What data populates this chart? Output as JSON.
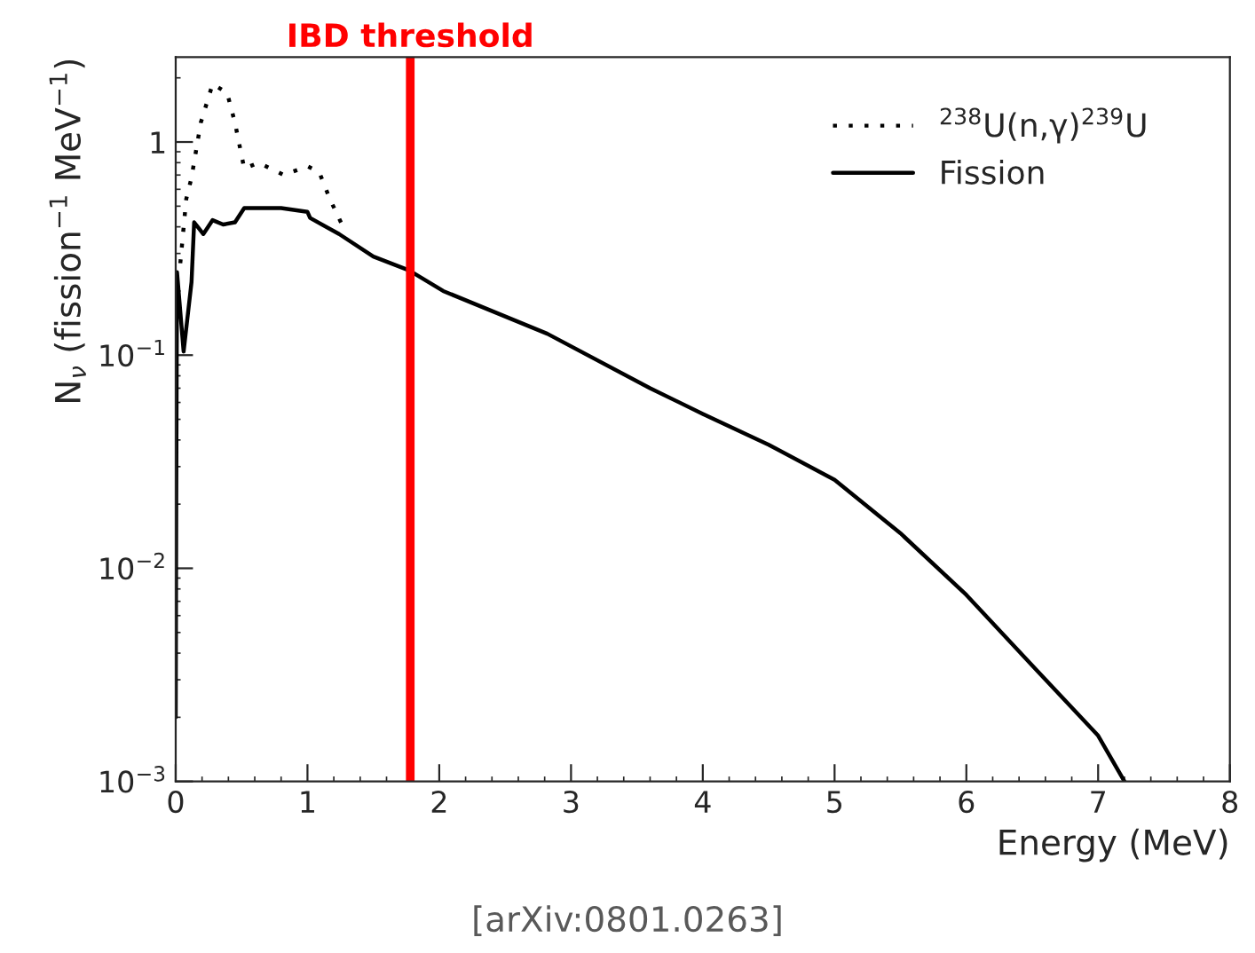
{
  "chart_data": {
    "type": "line",
    "xlabel": "Energy (MeV)",
    "ylabel": "N$_{ν}$ (fission$^{−1}$ MeV$^{−1}$)",
    "log": "y",
    "xlim": [
      0,
      8
    ],
    "ylim": [
      0.001,
      2.5
    ],
    "xticks": [
      0,
      1,
      2,
      3,
      4,
      5,
      6,
      7,
      8
    ],
    "yticks": [
      {
        "value": 0.001,
        "label": "10$^{−3}$"
      },
      {
        "value": 0.01,
        "label": "10$^{−2}$"
      },
      {
        "value": 0.1,
        "label": "10$^{−1}$"
      },
      {
        "value": 1,
        "label": "1"
      }
    ],
    "grid": false,
    "legend": "top right",
    "series": [
      {
        "name": "$^{238}$U(n,γ)$^{239}$U",
        "color": "#000000",
        "line_style": "dotted",
        "x": [
          0.035,
          0.08,
          0.12,
          0.19,
          0.28,
          0.39,
          0.45,
          0.52,
          0.63,
          0.82,
          1.0,
          1.09,
          1.17,
          1.27
        ],
        "values": [
          0.27,
          0.54,
          0.68,
          1.23,
          1.87,
          1.7,
          1.23,
          0.75,
          0.8,
          0.7,
          0.77,
          0.72,
          0.54,
          0.4
        ]
      },
      {
        "name": "Fission",
        "color": "#000000",
        "line_style": "solid",
        "x": [
          0.0,
          0.004,
          0.01,
          0.06,
          0.12,
          0.14,
          0.21,
          0.28,
          0.36,
          0.45,
          0.52,
          0.8,
          1.0,
          1.02,
          1.24,
          1.5,
          1.77,
          2.03,
          2.82,
          3.6,
          4.0,
          4.5,
          5.0,
          5.5,
          6.0,
          6.5,
          7.0,
          7.2
        ],
        "values": [
          0.002,
          0.02,
          0.245,
          0.104,
          0.22,
          0.42,
          0.37,
          0.43,
          0.41,
          0.42,
          0.49,
          0.49,
          0.47,
          0.44,
          0.37,
          0.29,
          0.25,
          0.2,
          0.126,
          0.07,
          0.053,
          0.038,
          0.026,
          0.0146,
          0.0075,
          0.0035,
          0.00164,
          0.001
        ]
      }
    ],
    "ref_lines": [
      {
        "axis": "x",
        "value": 1.78,
        "label": "IBD threshold",
        "color": "#ff0000",
        "line_style": "solid"
      }
    ],
    "annotations": [
      "[arXiv:0801.0263]"
    ]
  }
}
